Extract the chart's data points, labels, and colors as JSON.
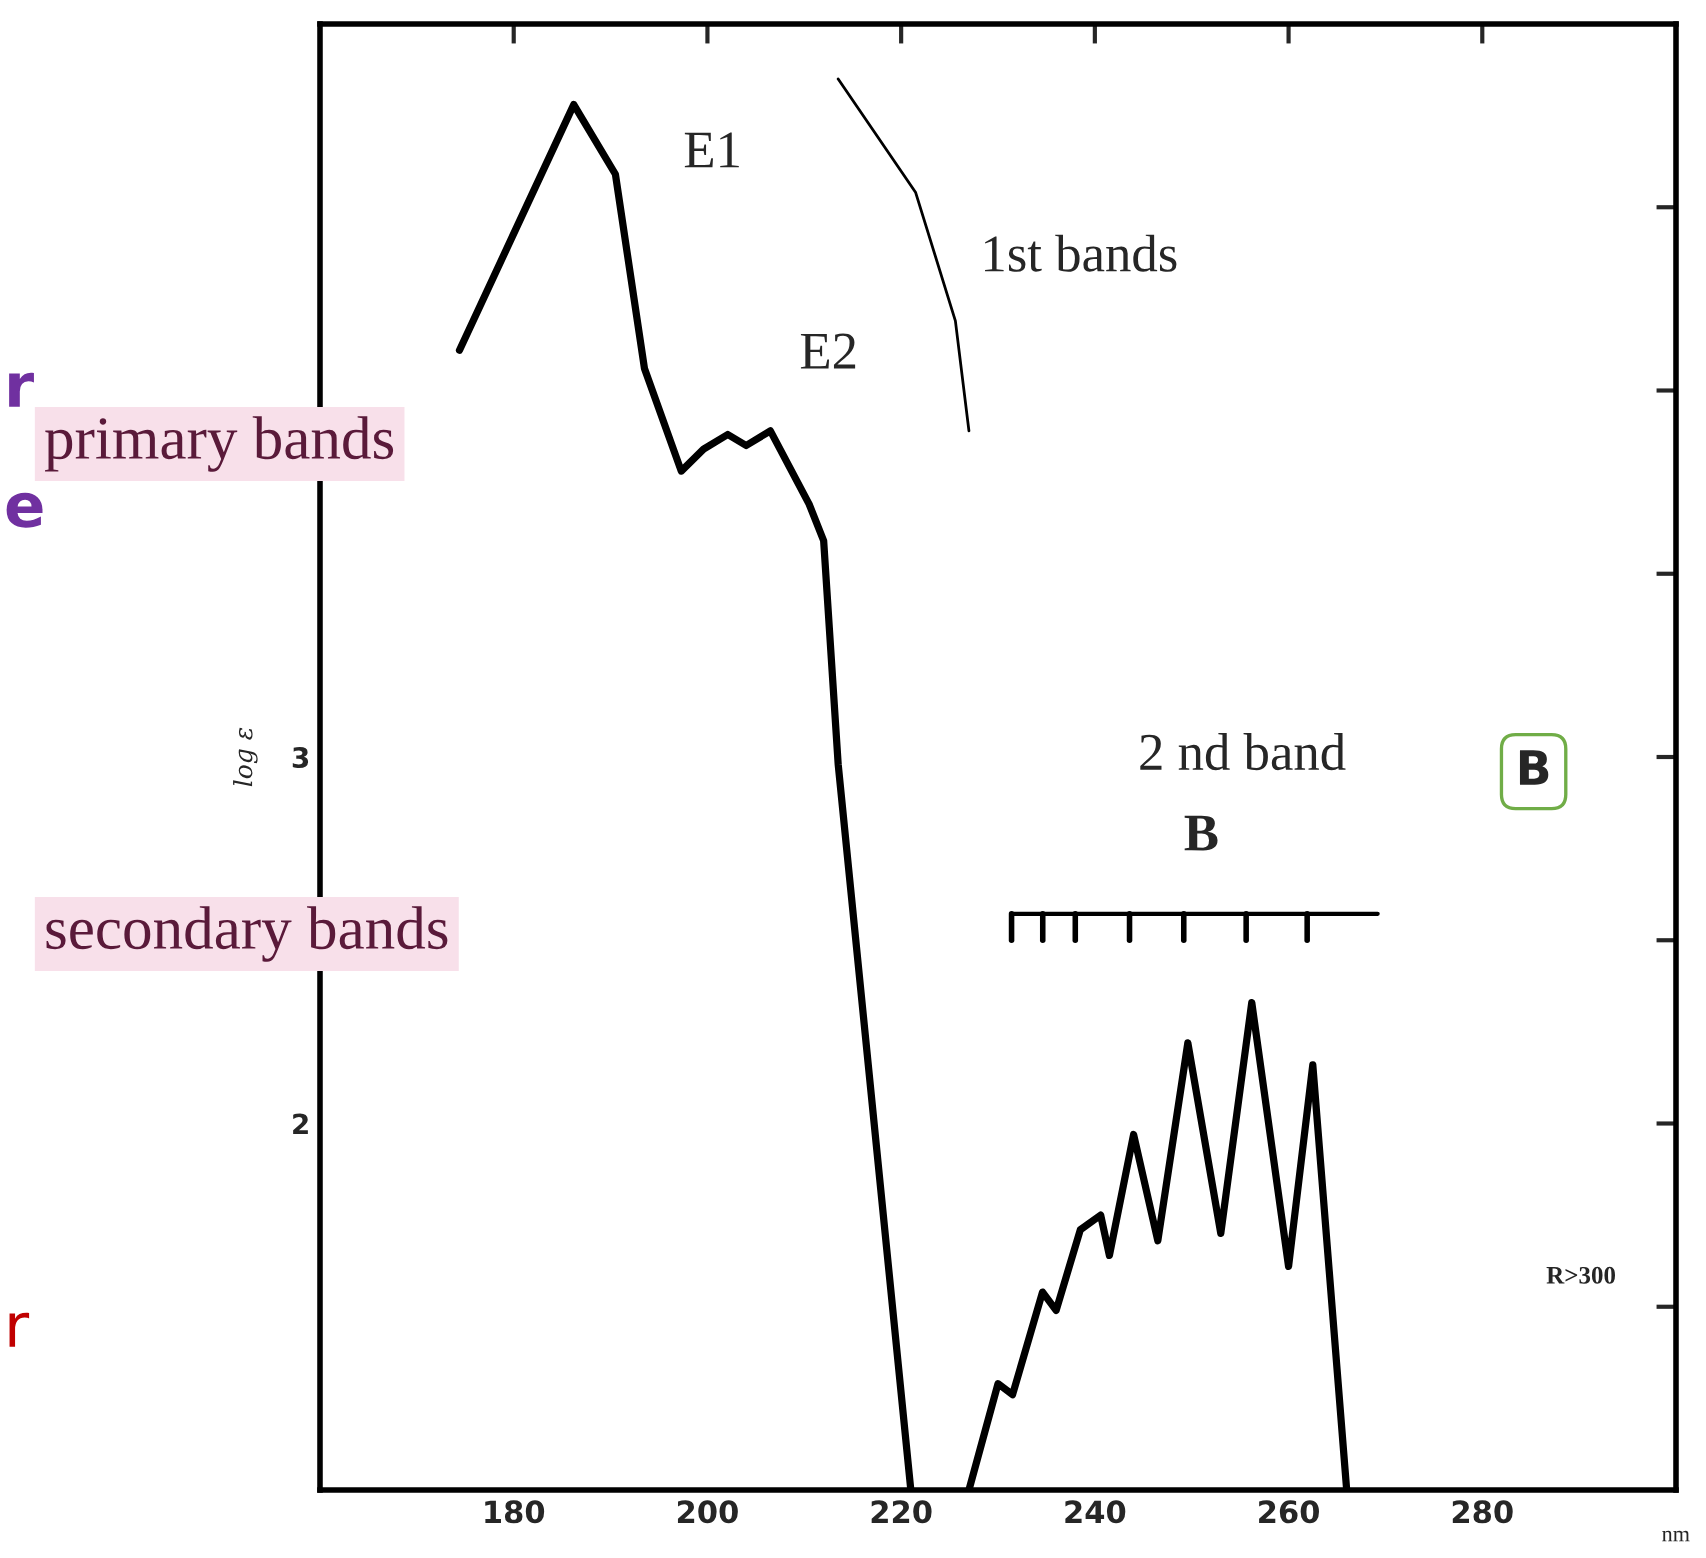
{
  "chart_data": {
    "type": "line",
    "xlabel": "nm",
    "ylabel": "log ε",
    "series": [
      {
        "color": "#000000",
        "x": [
          174.4,
          186.2,
          190.5,
          193.5,
          197.3,
          199.6,
          202.1,
          204,
          206.5,
          210.5,
          212,
          213.5,
          221,
          224,
          227,
          230,
          231.5,
          234.6,
          236,
          238.5,
          240.6,
          241.5,
          244,
          246.5,
          249.6,
          253,
          256.2,
          260,
          262.5,
          266
        ],
        "values": [
          4.11,
          4.78,
          4.59,
          4.06,
          3.78,
          3.84,
          3.88,
          3.85,
          3.89,
          3.69,
          3.59,
          2.98,
          1.0,
          null,
          1.0,
          1.29,
          1.26,
          1.54,
          1.49,
          1.71,
          1.75,
          1.64,
          1.97,
          1.68,
          2.22,
          1.7,
          2.33,
          1.61,
          2.16,
          1.0
        ]
      },
      {
        "color": "#000000",
        "x": [
          213.5,
          221.5,
          225.6,
          227
        ],
        "values": [
          4.85,
          4.54,
          4.19,
          3.89
        ]
      }
    ],
    "xlim": [
      160,
      300
    ],
    "ylim": [
      1,
      5
    ],
    "xticks": [
      180,
      200,
      220,
      240,
      260,
      280
    ],
    "yticks": [
      {
        "value": 1.5,
        "label": null
      },
      2,
      {
        "value": 2.5,
        "label": null
      },
      3,
      {
        "value": 3.5,
        "label": null
      },
      {
        "value": 4,
        "label": null
      },
      {
        "value": 4.5,
        "label": null
      }
    ],
    "grid": false,
    "legend": false,
    "annotations": [
      {
        "text": "E1",
        "x": 186.2,
        "y": 4.78
      },
      {
        "text": "E2",
        "x": 206.5,
        "y": 3.89
      },
      "1st bands",
      "primary bands",
      "2 nd band",
      "B",
      "B",
      "secondary bands",
      "R>300",
      "r",
      "e",
      "r"
    ]
  }
}
